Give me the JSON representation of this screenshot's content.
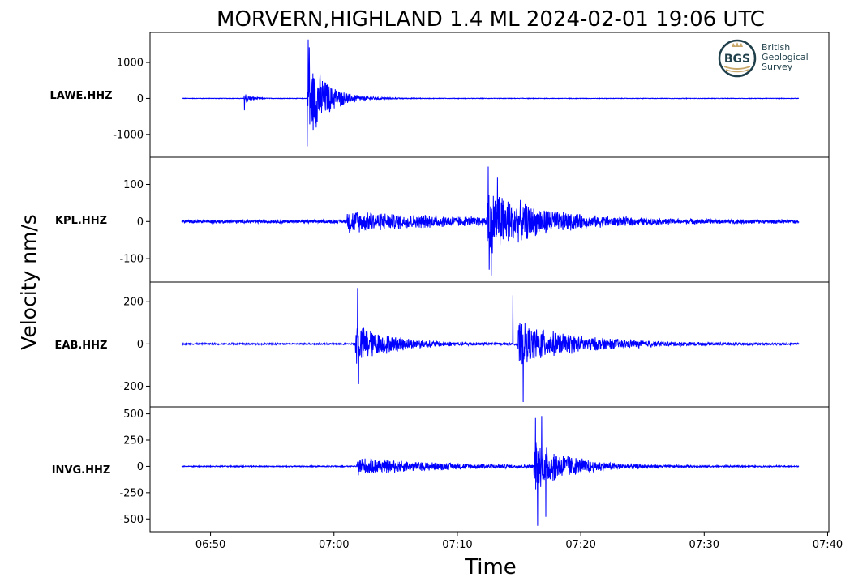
{
  "chart_data": {
    "type": "line",
    "title": "MORVERN,HIGHLAND 1.4 ML   2024-02-01 19:06 UTC",
    "ylabel": "Velocity nm/s",
    "xlabel": "Time",
    "x_ticks": [
      "06:50",
      "07:00",
      "07:10",
      "07:20",
      "07:30",
      "07:40"
    ],
    "x_range": [
      "06:45:06",
      "07:40:06"
    ],
    "series_color": "#0000ff",
    "panels": [
      {
        "station": "LAWE.HHZ",
        "yticks": [
          1000,
          0,
          -1000
        ],
        "ytick_labels": [
          "1000",
          "0",
          "-1000"
        ],
        "ylim": [
          -1500,
          1700
        ],
        "noise": 8,
        "events": [
          {
            "t": "06:52:40",
            "amp": 230,
            "decay": 0.5
          },
          {
            "t": "06:57:50",
            "amp": 1480,
            "decay": 1.5
          }
        ],
        "peaks": [
          {
            "t": "06:52:45",
            "v": 430
          },
          {
            "t": "06:52:45",
            "v": -330
          },
          {
            "t": "06:57:55",
            "v": 1640
          },
          {
            "t": "06:57:50",
            "v": -1330
          },
          {
            "t": "06:58:00",
            "v": 1420
          }
        ]
      },
      {
        "station": "KPL.HHZ",
        "yticks": [
          100,
          0,
          -100
        ],
        "ytick_labels": [
          "100",
          "0",
          "-100"
        ],
        "ylim": [
          -150,
          160
        ],
        "noise": 5,
        "events": [
          {
            "t": "07:01:00",
            "amp": 30,
            "decay": 9
          },
          {
            "t": "07:12:20",
            "amp": 95,
            "decay": 4
          }
        ],
        "peaks": [
          {
            "t": "07:12:30",
            "v": 148
          },
          {
            "t": "07:12:45",
            "v": -145
          },
          {
            "t": "07:12:35",
            "v": -130
          },
          {
            "t": "07:13:15",
            "v": 120
          }
        ]
      },
      {
        "station": "EAB.HHZ",
        "yticks": [
          200,
          0,
          -200
        ],
        "ytick_labels": [
          "200",
          "0",
          "-200"
        ],
        "ylim": [
          -275,
          270
        ],
        "noise": 4,
        "events": [
          {
            "t": "07:01:40",
            "amp": 110,
            "decay": 3
          },
          {
            "t": "07:14:50",
            "amp": 110,
            "decay": 5
          }
        ],
        "peaks": [
          {
            "t": "07:01:55",
            "v": 265
          },
          {
            "t": "07:02:00",
            "v": -190
          },
          {
            "t": "07:15:20",
            "v": -275
          },
          {
            "t": "07:14:30",
            "v": 230
          }
        ]
      },
      {
        "station": "INVG.HHZ",
        "yticks": [
          500,
          250,
          0,
          -250,
          -500
        ],
        "ytick_labels": [
          "500",
          "250",
          "0",
          "-250",
          "-500"
        ],
        "ylim": [
          -575,
          520
        ],
        "noise": 6,
        "events": [
          {
            "t": "07:01:50",
            "amp": 90,
            "decay": 7
          },
          {
            "t": "07:16:10",
            "amp": 260,
            "decay": 3
          }
        ],
        "peaks": [
          {
            "t": "07:16:50",
            "v": 480
          },
          {
            "t": "07:16:30",
            "v": -565
          },
          {
            "t": "07:16:20",
            "v": 460
          },
          {
            "t": "07:17:10",
            "v": -480
          }
        ]
      }
    ]
  },
  "logo": {
    "abbr": "BGS",
    "line1": "British",
    "line2": "Geological",
    "line3": "Survey",
    "color": "#1f3f4a",
    "accent": "#c8a86a"
  }
}
